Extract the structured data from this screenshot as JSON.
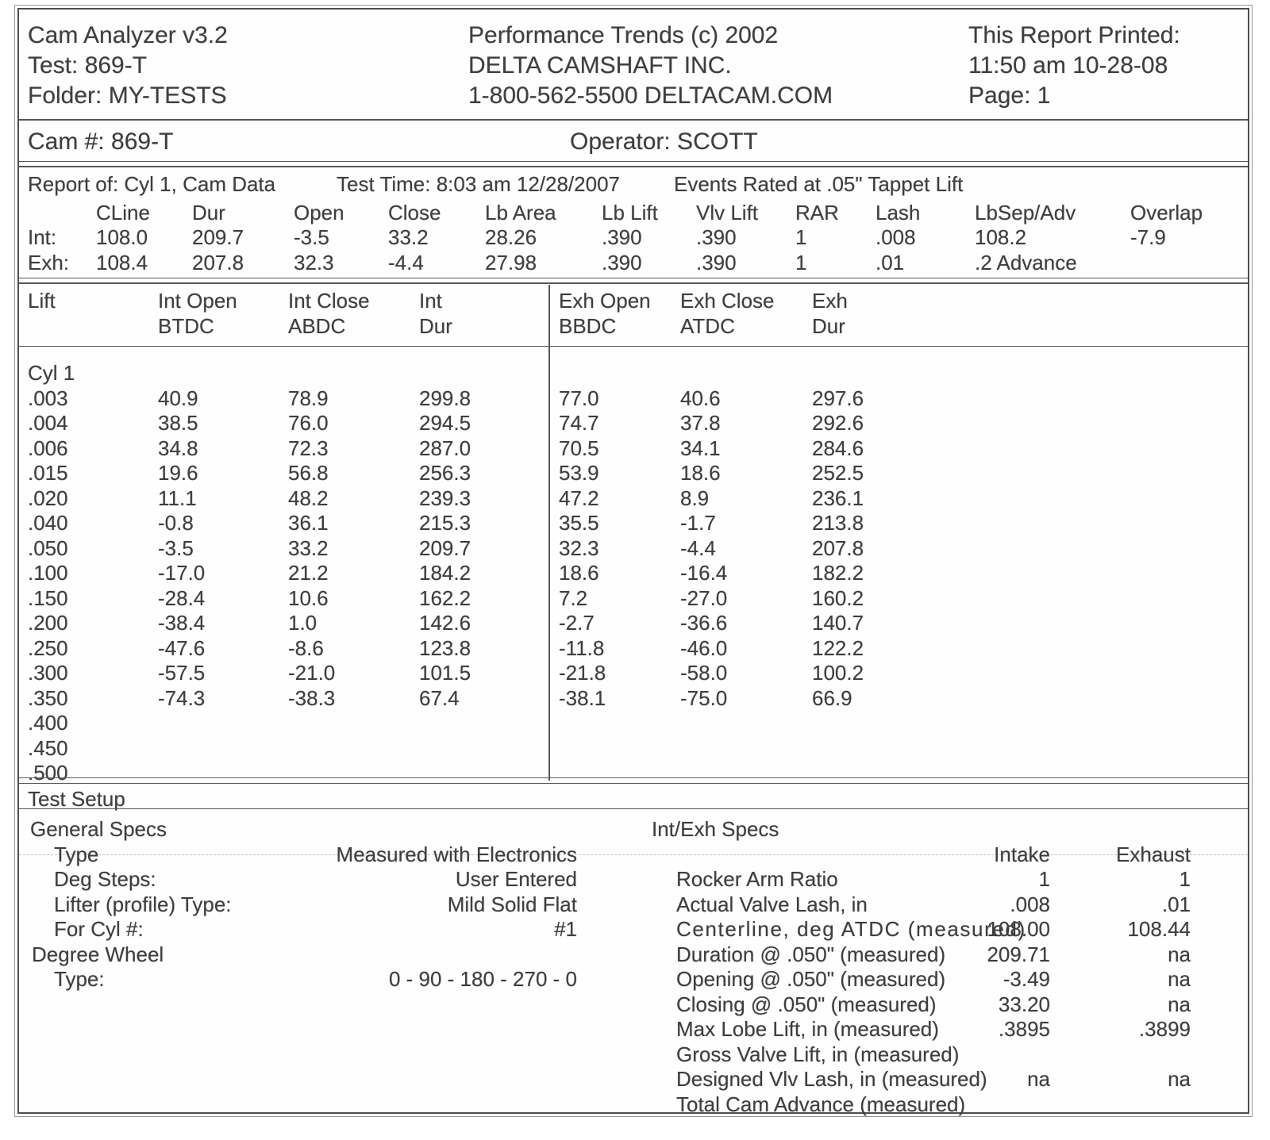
{
  "header": {
    "app_title": "Cam Analyzer v3.2",
    "test_line": "Test: 869-T",
    "folder_line": "Folder: MY-TESTS",
    "brand_line1": "Performance Trends (c) 2002",
    "brand_line2": "DELTA CAMSHAFT INC.",
    "brand_line3": "1-800-562-5500 DELTACAM.COM",
    "printed_label": "This Report Printed:",
    "printed_datetime": "11:50 am 10-28-08",
    "page_label": "Page: 1"
  },
  "cam_row": {
    "cam_number": "Cam #: 869-T",
    "operator": "Operator: SCOTT"
  },
  "events": {
    "report_of": "Report of:  Cyl 1, Cam Data",
    "test_time": "Test Time: 8:03 am  12/28/2007",
    "rated_note": "Events Rated at .05\" Tappet Lift",
    "columns": [
      "CLine",
      "Dur",
      "Open",
      "Close",
      "Lb Area",
      "Lb Lift",
      "Vlv Lift",
      "RAR",
      "Lash",
      "LbSep/Adv",
      "Overlap"
    ],
    "rows": [
      {
        "label": "Int:",
        "values": [
          "108.0",
          "209.7",
          "-3.5",
          "33.2",
          "28.26",
          ".390",
          ".390",
          "1",
          ".008",
          "108.2",
          "-7.9"
        ]
      },
      {
        "label": "Exh:",
        "values": [
          "108.4",
          "207.8",
          "32.3",
          "-4.4",
          "27.98",
          ".390",
          ".390",
          "1",
          ".01",
          ".2  Advance",
          ""
        ]
      }
    ]
  },
  "lift_table": {
    "group_label": "Cyl 1",
    "left_headers": [
      {
        "line1": "Lift",
        "line2": ""
      },
      {
        "line1": "Int Open",
        "line2": "BTDC"
      },
      {
        "line1": "Int Close",
        "line2": "ABDC"
      },
      {
        "line1": "Int",
        "line2": "Dur"
      }
    ],
    "right_headers": [
      {
        "line1": "Exh Open",
        "line2": "BBDC"
      },
      {
        "line1": "Exh Close",
        "line2": "ATDC"
      },
      {
        "line1": "Exh",
        "line2": "Dur"
      }
    ],
    "rows": [
      [
        ".003",
        "40.9",
        "78.9",
        "299.8",
        "77.0",
        "40.6",
        "297.6"
      ],
      [
        ".004",
        "38.5",
        "76.0",
        "294.5",
        "74.7",
        "37.8",
        "292.6"
      ],
      [
        ".006",
        "34.8",
        "72.3",
        "287.0",
        "70.5",
        "34.1",
        "284.6"
      ],
      [
        ".015",
        "19.6",
        "56.8",
        "256.3",
        "53.9",
        "18.6",
        "252.5"
      ],
      [
        ".020",
        "11.1",
        "48.2",
        "239.3",
        "47.2",
        "8.9",
        "236.1"
      ],
      [
        ".040",
        "-0.8",
        "36.1",
        "215.3",
        "35.5",
        "-1.7",
        "213.8"
      ],
      [
        ".050",
        "-3.5",
        "33.2",
        "209.7",
        "32.3",
        "-4.4",
        "207.8"
      ],
      [
        ".100",
        "-17.0",
        "21.2",
        "184.2",
        "18.6",
        "-16.4",
        "182.2"
      ],
      [
        ".150",
        "-28.4",
        "10.6",
        "162.2",
        "7.2",
        "-27.0",
        "160.2"
      ],
      [
        ".200",
        "-38.4",
        "1.0",
        "142.6",
        "-2.7",
        "-36.6",
        "140.7"
      ],
      [
        ".250",
        "-47.6",
        "-8.6",
        "123.8",
        "-11.8",
        "-46.0",
        "122.2"
      ],
      [
        ".300",
        "-57.5",
        "-21.0",
        "101.5",
        "-21.8",
        "-58.0",
        "100.2"
      ],
      [
        ".350",
        "-74.3",
        "-38.3",
        "67.4",
        "-38.1",
        "-75.0",
        "66.9"
      ],
      [
        ".400",
        "",
        "",
        "",
        "",
        "",
        ""
      ],
      [
        ".450",
        "",
        "",
        "",
        "",
        "",
        ""
      ],
      [
        ".500",
        "",
        "",
        "",
        "",
        "",
        ""
      ]
    ]
  },
  "test_setup": {
    "title": "Test Setup",
    "general": {
      "title": "General Specs",
      "rows": [
        {
          "label": "Type",
          "value": "Measured with Electronics",
          "indent": 1
        },
        {
          "label": "Deg Steps:",
          "value": "User Entered",
          "indent": 1
        },
        {
          "label": "Lifter (profile) Type:",
          "value": "Mild Solid Flat",
          "indent": 1
        },
        {
          "label": "For Cyl #:",
          "value": "#1",
          "indent": 1
        },
        {
          "label": "Degree Wheel",
          "value": "",
          "indent": 0
        },
        {
          "label": "Type:",
          "value": "0 - 90 - 180 - 270 - 0",
          "indent": 1
        }
      ]
    },
    "intexh": {
      "title": "Int/Exh Specs",
      "col_headers": [
        "Intake",
        "Exhaust"
      ],
      "rows": [
        {
          "label": "Rocker Arm Ratio",
          "intake": "1",
          "exhaust": "1"
        },
        {
          "label": "Actual Valve Lash, in",
          "intake": ".008",
          "exhaust": ".01"
        },
        {
          "label": "Centerline, deg ATDC  (measured)",
          "intake": "108.00",
          "exhaust": "108.44"
        },
        {
          "label": "Duration @ .050\" (measured)",
          "intake": "209.71",
          "exhaust": "na"
        },
        {
          "label": "Opening @ .050\" (measured)",
          "intake": "-3.49",
          "exhaust": "na"
        },
        {
          "label": "Closing @ .050\" (measured)",
          "intake": "33.20",
          "exhaust": "na"
        },
        {
          "label": "Max Lobe Lift, in (measured)",
          "intake": ".3895",
          "exhaust": ".3899"
        },
        {
          "label": "Gross Valve Lift, in (measured)",
          "intake": "",
          "exhaust": ""
        },
        {
          "label": "Designed Vlv Lash, in (measured)",
          "intake": "na",
          "exhaust": "na"
        },
        {
          "label": "Total Cam Advance (measured)",
          "intake": "",
          "exhaust": ""
        }
      ]
    }
  }
}
